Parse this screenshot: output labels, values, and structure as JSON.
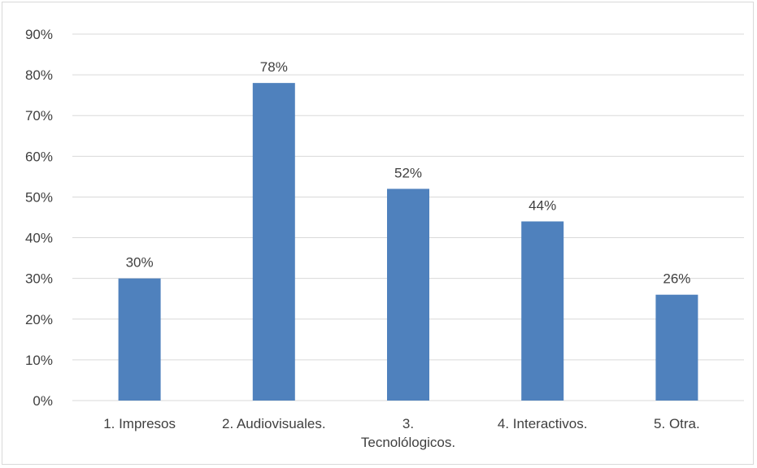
{
  "chart_data": {
    "type": "bar",
    "title": "",
    "xlabel": "",
    "ylabel": "",
    "categories": [
      [
        "1. Impresos"
      ],
      [
        "2. Audiovisuales."
      ],
      [
        "3.",
        "Tecnolólogicos."
      ],
      [
        "4. Interactivos."
      ],
      [
        "5. Otra."
      ]
    ],
    "values": [
      30,
      78,
      52,
      44,
      26
    ],
    "data_labels": [
      "30%",
      "78%",
      "52%",
      "44%",
      "26%"
    ],
    "y_ticks": [
      "0%",
      "10%",
      "20%",
      "30%",
      "40%",
      "50%",
      "60%",
      "70%",
      "80%",
      "90%"
    ],
    "ylim": [
      0,
      90
    ],
    "grid": true,
    "legend": "none",
    "bar_color": "#4f81bd",
    "grid_color": "#d9d9d9"
  }
}
